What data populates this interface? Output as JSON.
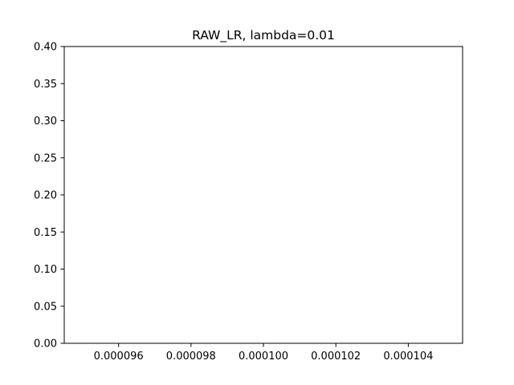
{
  "chart_data": {
    "type": "line",
    "title": "RAW_LR, lambda=0.01",
    "xlabel": "",
    "ylabel": "",
    "series": [],
    "xlim": [
      9.45e-05,
      0.0001055
    ],
    "ylim": [
      0,
      0.4
    ],
    "x_ticks": [
      {
        "value": 9.6e-05,
        "label": "0.000096"
      },
      {
        "value": 9.8e-05,
        "label": "0.000098"
      },
      {
        "value": 0.0001,
        "label": "0.000100"
      },
      {
        "value": 0.000102,
        "label": "0.000102"
      },
      {
        "value": 0.000104,
        "label": "0.000104"
      }
    ],
    "y_ticks": [
      {
        "value": 0.0,
        "label": "0.00"
      },
      {
        "value": 0.05,
        "label": "0.05"
      },
      {
        "value": 0.1,
        "label": "0.10"
      },
      {
        "value": 0.15,
        "label": "0.15"
      },
      {
        "value": 0.2,
        "label": "0.20"
      },
      {
        "value": 0.25,
        "label": "0.25"
      },
      {
        "value": 0.3,
        "label": "0.30"
      },
      {
        "value": 0.35,
        "label": "0.35"
      },
      {
        "value": 0.4,
        "label": "0.40"
      }
    ],
    "grid": false,
    "legend": "none"
  }
}
